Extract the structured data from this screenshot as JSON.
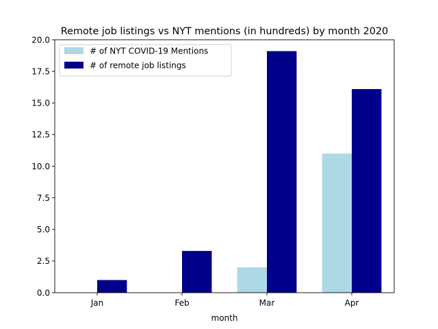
{
  "chart_data": {
    "type": "bar",
    "title": "Remote job listings vs NYT mentions (in hundreds) by month 2020",
    "xlabel": "month",
    "ylabel": "",
    "categories": [
      "Jan",
      "Feb",
      "Mar",
      "Apr"
    ],
    "ylim": [
      0,
      20
    ],
    "yticks": [
      "0.0",
      "2.5",
      "5.0",
      "7.5",
      "10.0",
      "12.5",
      "15.0",
      "17.5",
      "20.0"
    ],
    "grid": false,
    "legend_position": "top-left",
    "series": [
      {
        "name": "# of NYT COVID-19 Mentions",
        "color": "#add8e6",
        "values": [
          0,
          0,
          2.0,
          11.0
        ]
      },
      {
        "name": "# of remote job listings",
        "color": "#00008b",
        "values": [
          1.0,
          3.3,
          19.1,
          16.1
        ]
      }
    ]
  }
}
